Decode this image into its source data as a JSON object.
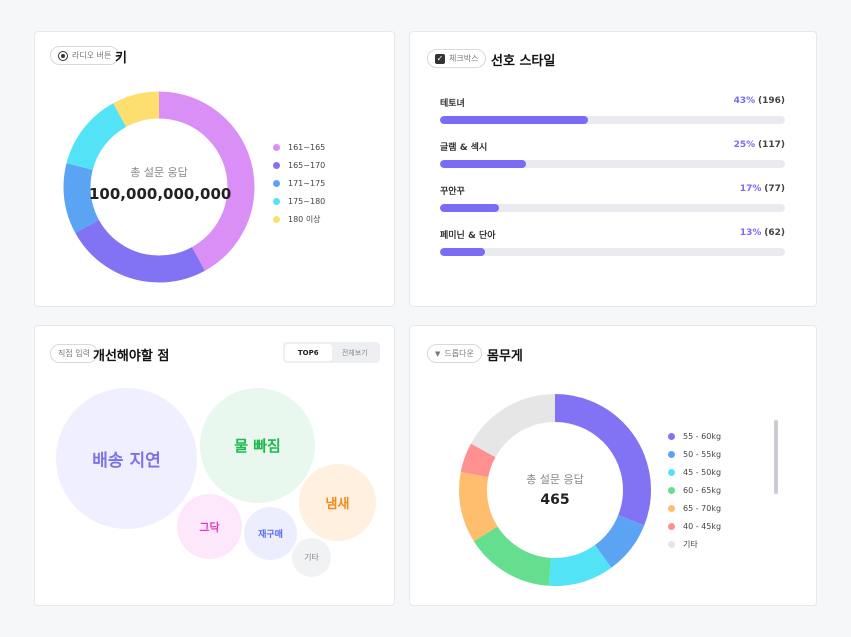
{
  "height_card": {
    "tag_label": "라디오 버튼",
    "title": "키",
    "center_sub": "총 설문 응답",
    "center_value": "100,000,000,000",
    "chart_data": {
      "type": "pie",
      "categories": [
        "161~165",
        "165~170",
        "171~175",
        "175~180",
        "180 이상"
      ],
      "values": [
        42,
        25,
        12,
        13,
        8
      ],
      "colors": [
        "#d98ff5",
        "#8272f4",
        "#5ba4f4",
        "#53e3f7",
        "#fcdf6e"
      ],
      "legend_position": "right"
    }
  },
  "style_card": {
    "tag_label": "체크박스",
    "title": "선호 스타일",
    "items": [
      {
        "label": "테토녀",
        "pct": "43%",
        "count": "(196)",
        "value": 43
      },
      {
        "label": "글램 & 섹시",
        "pct": "25%",
        "count": "(117)",
        "value": 25
      },
      {
        "label": "꾸안꾸",
        "pct": "17%",
        "count": "(77)",
        "value": 17
      },
      {
        "label": "페미닌 & 단아",
        "pct": "13%",
        "count": "(62)",
        "value": 13
      }
    ]
  },
  "improve_card": {
    "tag_label": "직접 입력",
    "title": "개선해야할 점",
    "toggle": {
      "active": "TOP6",
      "other": "전체보기"
    },
    "bubbles": [
      {
        "label": "배송 지연",
        "color": "#7b72e8",
        "bg": "#f0efff"
      },
      {
        "label": "물 빠짐",
        "color": "#1fb84e",
        "bg": "#e8f8ee"
      },
      {
        "label": "냄새",
        "color": "#f08a1c",
        "bg": "#fff0e0"
      },
      {
        "label": "그닥",
        "color": "#e040c8",
        "bg": "#fde8fb"
      },
      {
        "label": "재구매",
        "color": "#5a6cf0",
        "bg": "#eceefe"
      },
      {
        "label": "기타",
        "color": "#888888",
        "bg": "#f1f2f4"
      }
    ]
  },
  "weight_card": {
    "tag_label": "드롭다운",
    "title": "몸무게",
    "center_sub": "총 설문 응답",
    "center_value": "465",
    "chart_data": {
      "type": "pie",
      "categories": [
        "55 - 60kg",
        "50 - 55kg",
        "45 - 50kg",
        "60 - 65kg",
        "65 - 70kg",
        "40 - 45kg",
        "기타"
      ],
      "values": [
        31,
        9,
        11,
        15,
        12,
        5,
        17
      ],
      "colors": [
        "#8272f4",
        "#5ba4f4",
        "#53e3f7",
        "#65df8f",
        "#ffbe6e",
        "#ff9090",
        "#e6e6e6"
      ],
      "legend_position": "right"
    }
  }
}
